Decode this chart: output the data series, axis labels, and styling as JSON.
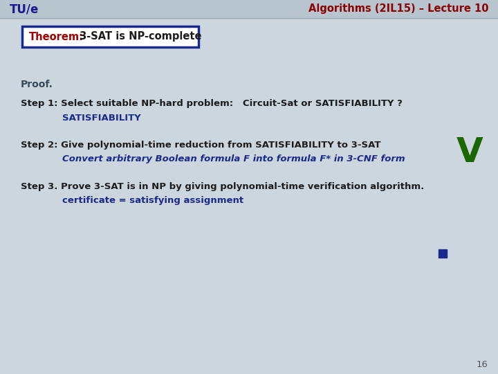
{
  "bg_color": "#ccd6de",
  "header_bg": "#b8c4ce",
  "header_line_color": "#9aaab5",
  "title_left": "TU/e",
  "title_right": "Algorithms (2IL15) – Lecture 10",
  "title_color_left": "#1a1a8c",
  "title_color_right": "#8b0000",
  "theorem_red": "Theorem:",
  "theorem_black": " 3-SAT is NP-complete",
  "theorem_box_color": "#1a2a8c",
  "proof_text": "Proof.",
  "step1_line1": "Step 1: Select suitable NP-hard problem:   Circuit-Sat or SATISFIABILITY ?",
  "step1_line2": "SATISFIABILITY",
  "step2_line1": "Step 2: Give polynomial-time reduction from SATISFIABILITY to 3-SAT",
  "step2_line2": "Convert arbitrary Boolean formula F into formula F* in 3-CNF form",
  "step2_checkmark": "V",
  "step3_line1": "Step 3. Prove 3-SAT is in NP by giving polynomial-time verification algorithm.",
  "step3_line2": "certificate = satisfying assignment",
  "page_number": "16",
  "dark_text": "#1c1c1c",
  "blue_color": "#1a2a8c",
  "green_color": "#1a6600",
  "italic_blue": "#1a2a8c"
}
